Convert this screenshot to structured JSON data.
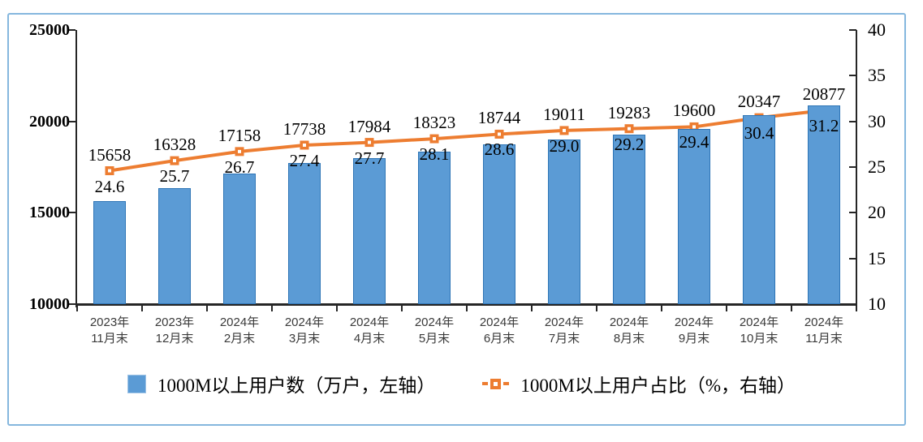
{
  "chart_data": {
    "type": "combo-bar-line",
    "title": "",
    "categories": [
      [
        "2023年",
        "11月末"
      ],
      [
        "2023年",
        "12月末"
      ],
      [
        "2024年",
        "2月末"
      ],
      [
        "2024年",
        "3月末"
      ],
      [
        "2024年",
        "4月末"
      ],
      [
        "2024年",
        "5月末"
      ],
      [
        "2024年",
        "6月末"
      ],
      [
        "2024年",
        "7月末"
      ],
      [
        "2024年",
        "8月末"
      ],
      [
        "2024年",
        "9月末"
      ],
      [
        "2024年",
        "10月末"
      ],
      [
        "2024年",
        "11月末"
      ]
    ],
    "series": [
      {
        "name": "1000M以上用户数（万户，左轴）",
        "type": "bar",
        "axis": "left",
        "color": "#5b9bd5",
        "values": [
          15658,
          16328,
          17158,
          17738,
          17984,
          18323,
          18744,
          19011,
          19283,
          19600,
          20347,
          20877
        ],
        "labels": [
          "15658",
          "16328",
          "17158",
          "17738",
          "17984",
          "18323",
          "18744",
          "19011",
          "19283",
          "19600",
          "20347",
          "20877"
        ]
      },
      {
        "name": "1000M以上用户占比（%，右轴）",
        "type": "line",
        "axis": "right",
        "color": "#ed7d31",
        "values": [
          24.6,
          25.7,
          26.7,
          27.4,
          27.7,
          28.1,
          28.6,
          29.0,
          29.2,
          29.4,
          30.4,
          31.2
        ],
        "labels": [
          "24.6",
          "25.7",
          "26.7",
          "27.4",
          "27.7",
          "28.1",
          "28.6",
          "29.0",
          "29.2",
          "29.4",
          "30.4",
          "31.2"
        ]
      }
    ],
    "left_axis": {
      "min": 10000,
      "max": 25000,
      "tick_labels": [
        "25000",
        "20000",
        "15000",
        "10000"
      ]
    },
    "right_axis": {
      "min": 10,
      "max": 40,
      "tick_labels": [
        "40",
        "35",
        "30",
        "25",
        "20",
        "15",
        "10"
      ]
    },
    "legend_position": "bottom",
    "grid": false
  },
  "colors": {
    "bar_fill": "#5b9bd5",
    "bar_border": "#2e75b6",
    "line": "#ed7d31",
    "frame_border": "#85b7de",
    "axis": "#262626"
  }
}
